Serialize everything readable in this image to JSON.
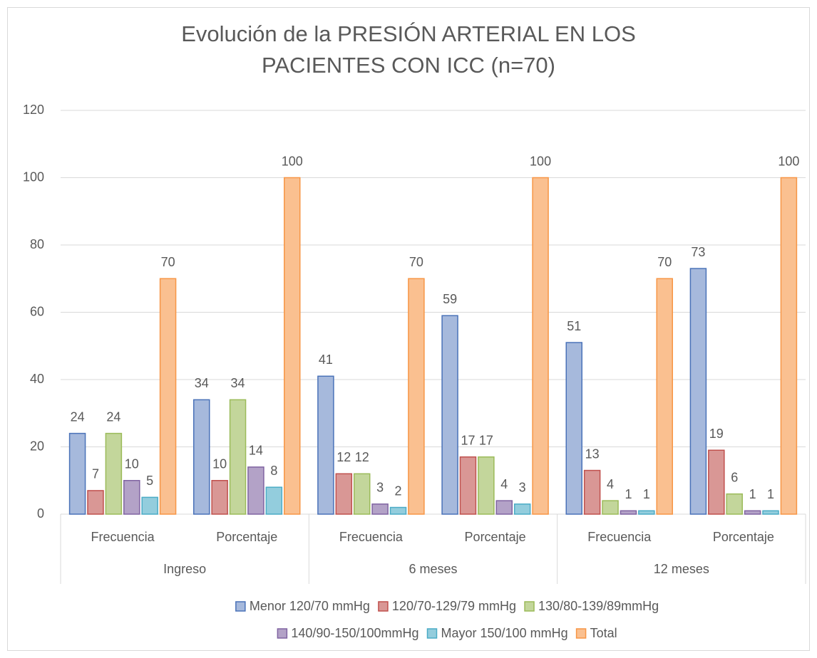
{
  "chart_data": {
    "type": "bar",
    "title": "Evolución de la PRESIÓN ARTERIAL EN LOS PACIENTES CON ICC (n=70)",
    "categories": [
      "Frecuencia",
      "Porcentaje",
      "Frecuencia",
      "Porcentaje",
      "Frecuencia",
      "Porcentaje"
    ],
    "groups": [
      "Ingreso",
      "6 meses",
      "12 meses"
    ],
    "series": [
      {
        "name": "Menor 120/70 mmHg",
        "color": "#4a72b8",
        "fill": "#a6b9dc",
        "values": [
          24,
          34,
          41,
          59,
          51,
          73
        ]
      },
      {
        "name": "120/70-129/79 mmHg",
        "color": "#c0504d",
        "fill": "#d99795",
        "values": [
          7,
          10,
          12,
          17,
          13,
          19
        ]
      },
      {
        "name": "130/80-139/89mmHg",
        "color": "#9bbb59",
        "fill": "#c3d69b",
        "values": [
          24,
          34,
          12,
          17,
          4,
          6
        ]
      },
      {
        "name": "140/90-150/100mmHg",
        "color": "#8064a2",
        "fill": "#b3a2c7",
        "values": [
          10,
          14,
          3,
          4,
          1,
          1
        ]
      },
      {
        "name": "Mayor 150/100 mmHg",
        "color": "#4bacc6",
        "fill": "#93cddd",
        "values": [
          5,
          8,
          2,
          3,
          1,
          1
        ]
      },
      {
        "name": "Total",
        "color": "#f79646",
        "fill": "#fac090",
        "values": [
          70,
          100,
          70,
          100,
          70,
          100
        ]
      }
    ],
    "ylim": [
      0,
      120
    ],
    "yticks": [
      0,
      20,
      40,
      60,
      80,
      100,
      120
    ],
    "grid": true,
    "legend": "bottom"
  }
}
